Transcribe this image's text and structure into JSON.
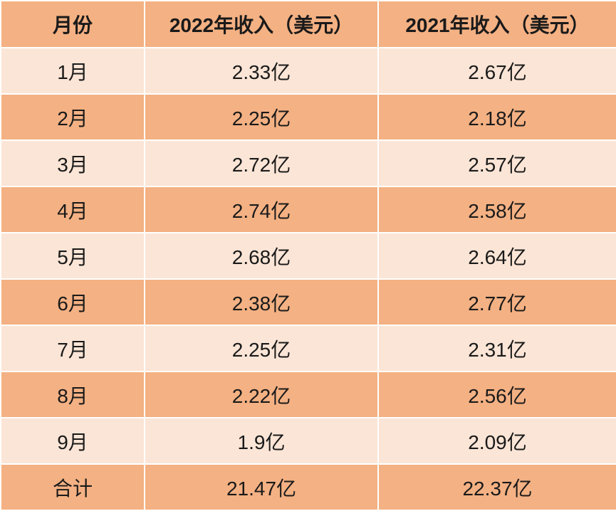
{
  "table": {
    "header": {
      "month": "月份",
      "rev_2022": "2022年收入（美元）",
      "rev_2021": "2021年收入（美元）"
    },
    "rows": [
      {
        "month": "1月",
        "rev_2022": "2.33亿",
        "rev_2021": "2.67亿"
      },
      {
        "month": "2月",
        "rev_2022": "2.25亿",
        "rev_2021": "2.18亿"
      },
      {
        "month": "3月",
        "rev_2022": "2.72亿",
        "rev_2021": "2.57亿"
      },
      {
        "month": "4月",
        "rev_2022": "2.74亿",
        "rev_2021": "2.58亿"
      },
      {
        "month": "5月",
        "rev_2022": "2.68亿",
        "rev_2021": "2.64亿"
      },
      {
        "month": "6月",
        "rev_2022": "2.38亿",
        "rev_2021": "2.77亿"
      },
      {
        "month": "7月",
        "rev_2022": "2.25亿",
        "rev_2021": "2.31亿"
      },
      {
        "month": "8月",
        "rev_2022": "2.22亿",
        "rev_2021": "2.56亿"
      },
      {
        "month": "9月",
        "rev_2022": "1.9亿",
        "rev_2021": "2.09亿"
      }
    ],
    "total": {
      "month": "合计",
      "rev_2022": "21.47亿",
      "rev_2021": "22.37亿"
    }
  },
  "colors": {
    "dark_band": "#f4b183",
    "light_band": "#fbe5d6",
    "border": "#ffffff"
  }
}
